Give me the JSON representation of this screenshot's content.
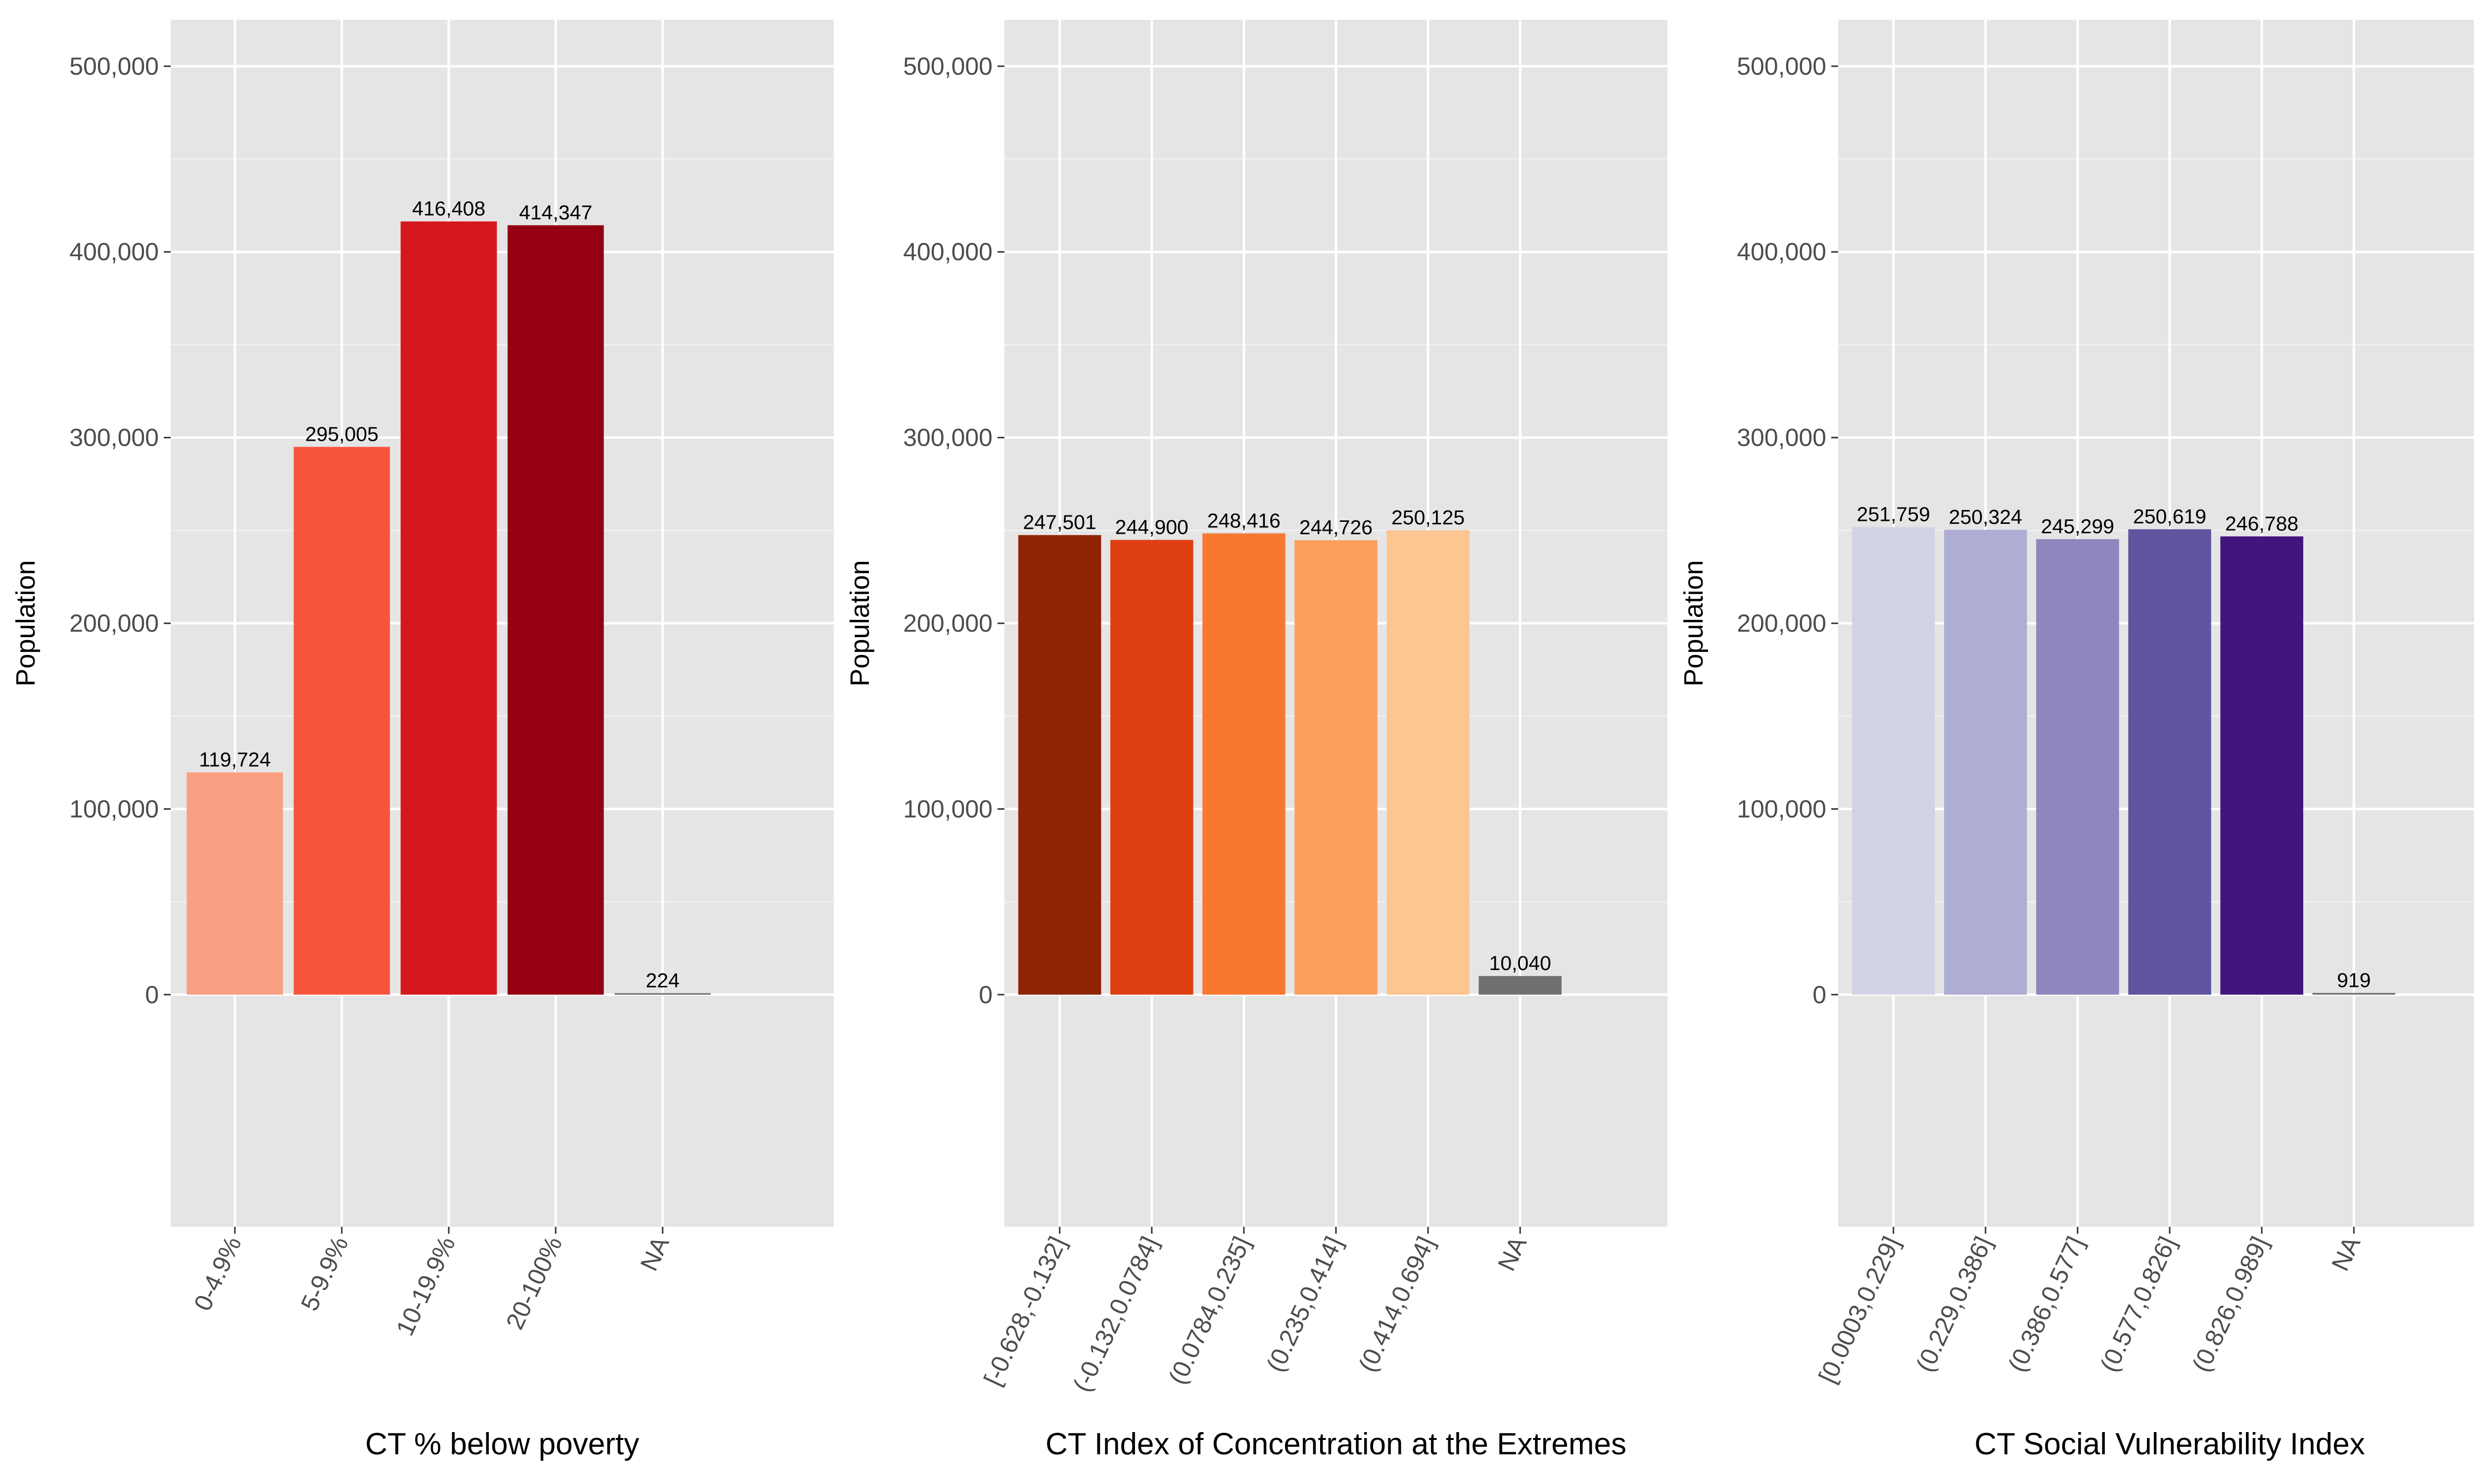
{
  "chart_data": [
    {
      "type": "bar",
      "xlabel": "CT % below poverty",
      "ylabel": "Population",
      "ylim": [
        -125000,
        525000
      ],
      "yticks": [
        0,
        100000,
        200000,
        300000,
        400000,
        500000
      ],
      "ytick_labels": [
        "0",
        "100,000",
        "200,000",
        "300,000",
        "400,000",
        "500,000"
      ],
      "grid": true,
      "legend": "none",
      "categories": [
        "0-4.9%",
        "5-9.9%",
        "10-19.9%",
        "20-100%",
        "NA"
      ],
      "values": [
        119724,
        295005,
        416408,
        414347,
        224
      ],
      "value_labels": [
        "119,724",
        "295,005",
        "416,408",
        "414,347",
        "224"
      ],
      "colors": [
        "#f9a083",
        "#f6553c",
        "#d6181d",
        "#950013",
        "#707070"
      ]
    },
    {
      "type": "bar",
      "xlabel": "CT Index of Concentration at the Extremes",
      "ylabel": "Population",
      "ylim": [
        -125000,
        525000
      ],
      "yticks": [
        0,
        100000,
        200000,
        300000,
        400000,
        500000
      ],
      "ytick_labels": [
        "0",
        "100,000",
        "200,000",
        "300,000",
        "400,000",
        "500,000"
      ],
      "grid": true,
      "legend": "none",
      "categories": [
        "[-0.628,-0.132]",
        "(-0.132,0.0784]",
        "(0.0784,0.235]",
        "(0.235,0.414]",
        "(0.414,0.694]",
        "NA"
      ],
      "values": [
        247501,
        244900,
        248416,
        244726,
        250125,
        10040
      ],
      "value_labels": [
        "247,501",
        "244,900",
        "248,416",
        "244,726",
        "250,125",
        "10,040"
      ],
      "colors": [
        "#8f2306",
        "#de3f11",
        "#f97830",
        "#fb9f5a",
        "#fcc592",
        "#707070"
      ]
    },
    {
      "type": "bar",
      "xlabel": "CT Social Vulnerability Index",
      "ylabel": "Population",
      "ylim": [
        -125000,
        525000
      ],
      "yticks": [
        0,
        100000,
        200000,
        300000,
        400000,
        500000
      ],
      "ytick_labels": [
        "0",
        "100,000",
        "200,000",
        "300,000",
        "400,000",
        "500,000"
      ],
      "grid": true,
      "legend": "none",
      "categories": [
        "[0.0003,0.229]",
        "(0.229,0.386]",
        "(0.386,0.577]",
        "(0.577,0.826]",
        "(0.826,0.989]",
        "NA"
      ],
      "values": [
        251759,
        250324,
        245299,
        250619,
        246788,
        919
      ],
      "value_labels": [
        "251,759",
        "250,324",
        "245,299",
        "250,619",
        "246,788",
        "919"
      ],
      "colors": [
        "#d1d2e6",
        "#aeadd4",
        "#8e87be",
        "#6154a0",
        "#41157b",
        "#707070"
      ]
    }
  ]
}
